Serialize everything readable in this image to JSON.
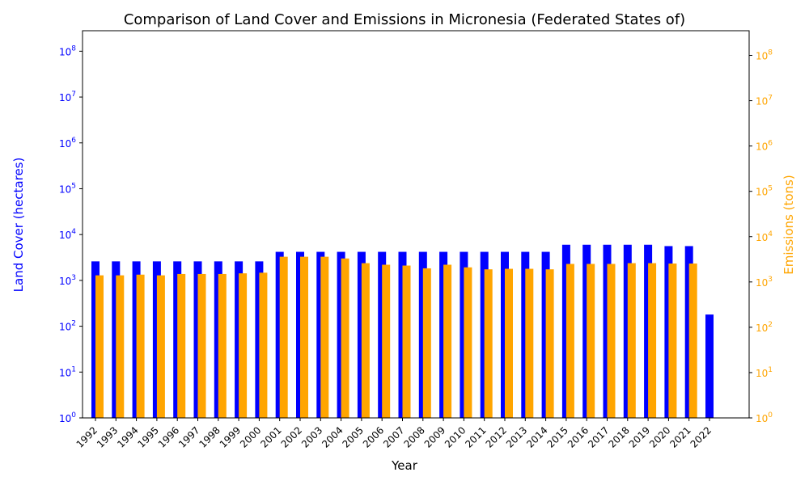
{
  "chart_data": {
    "type": "bar",
    "title": "Comparison of Land Cover and Emissions in Micronesia (Federated States of)",
    "xlabel": "Year",
    "categories": [
      "1992",
      "1993",
      "1994",
      "1995",
      "1996",
      "1997",
      "1998",
      "1999",
      "2000",
      "2001",
      "2002",
      "2003",
      "2004",
      "2005",
      "2006",
      "2007",
      "2008",
      "2009",
      "2010",
      "2011",
      "2012",
      "2013",
      "2014",
      "2015",
      "2016",
      "2017",
      "2018",
      "2019",
      "2020",
      "2021",
      "2022"
    ],
    "y_scale": "log",
    "left_axis": {
      "label": "Land Cover (hectares)",
      "color": "#0000ff",
      "ylim": [
        1,
        280000000
      ],
      "tick_labels": [
        "10^0",
        "10^1",
        "10^2",
        "10^3",
        "10^4",
        "10^5",
        "10^6",
        "10^7",
        "10^8"
      ]
    },
    "right_axis": {
      "label": "Emissions (tons)",
      "color": "#ffa500",
      "ylim": [
        1,
        350000000
      ],
      "tick_labels": [
        "10^0",
        "10^1",
        "10^2",
        "10^3",
        "10^4",
        "10^5",
        "10^6",
        "10^7",
        "10^8"
      ]
    },
    "series": [
      {
        "axis": "left",
        "color": "#0000ff",
        "values": [
          2600,
          2600,
          2600,
          2600,
          2600,
          2600,
          2600,
          2600,
          2600,
          4200,
          4200,
          4200,
          4200,
          4200,
          4200,
          4200,
          4200,
          4200,
          4200,
          4200,
          4200,
          4200,
          4200,
          6000,
          6000,
          6000,
          6000,
          6000,
          5600,
          5600,
          180
        ]
      },
      {
        "axis": "right",
        "color": "#ffa500",
        "values": [
          1400,
          1400,
          1450,
          1400,
          1500,
          1500,
          1500,
          1550,
          1600,
          3600,
          3600,
          3600,
          3300,
          2600,
          2400,
          2300,
          2000,
          2400,
          2100,
          1900,
          1950,
          1950,
          1900,
          2500,
          2500,
          2500,
          2600,
          2600,
          2550,
          2550,
          null
        ]
      }
    ]
  }
}
